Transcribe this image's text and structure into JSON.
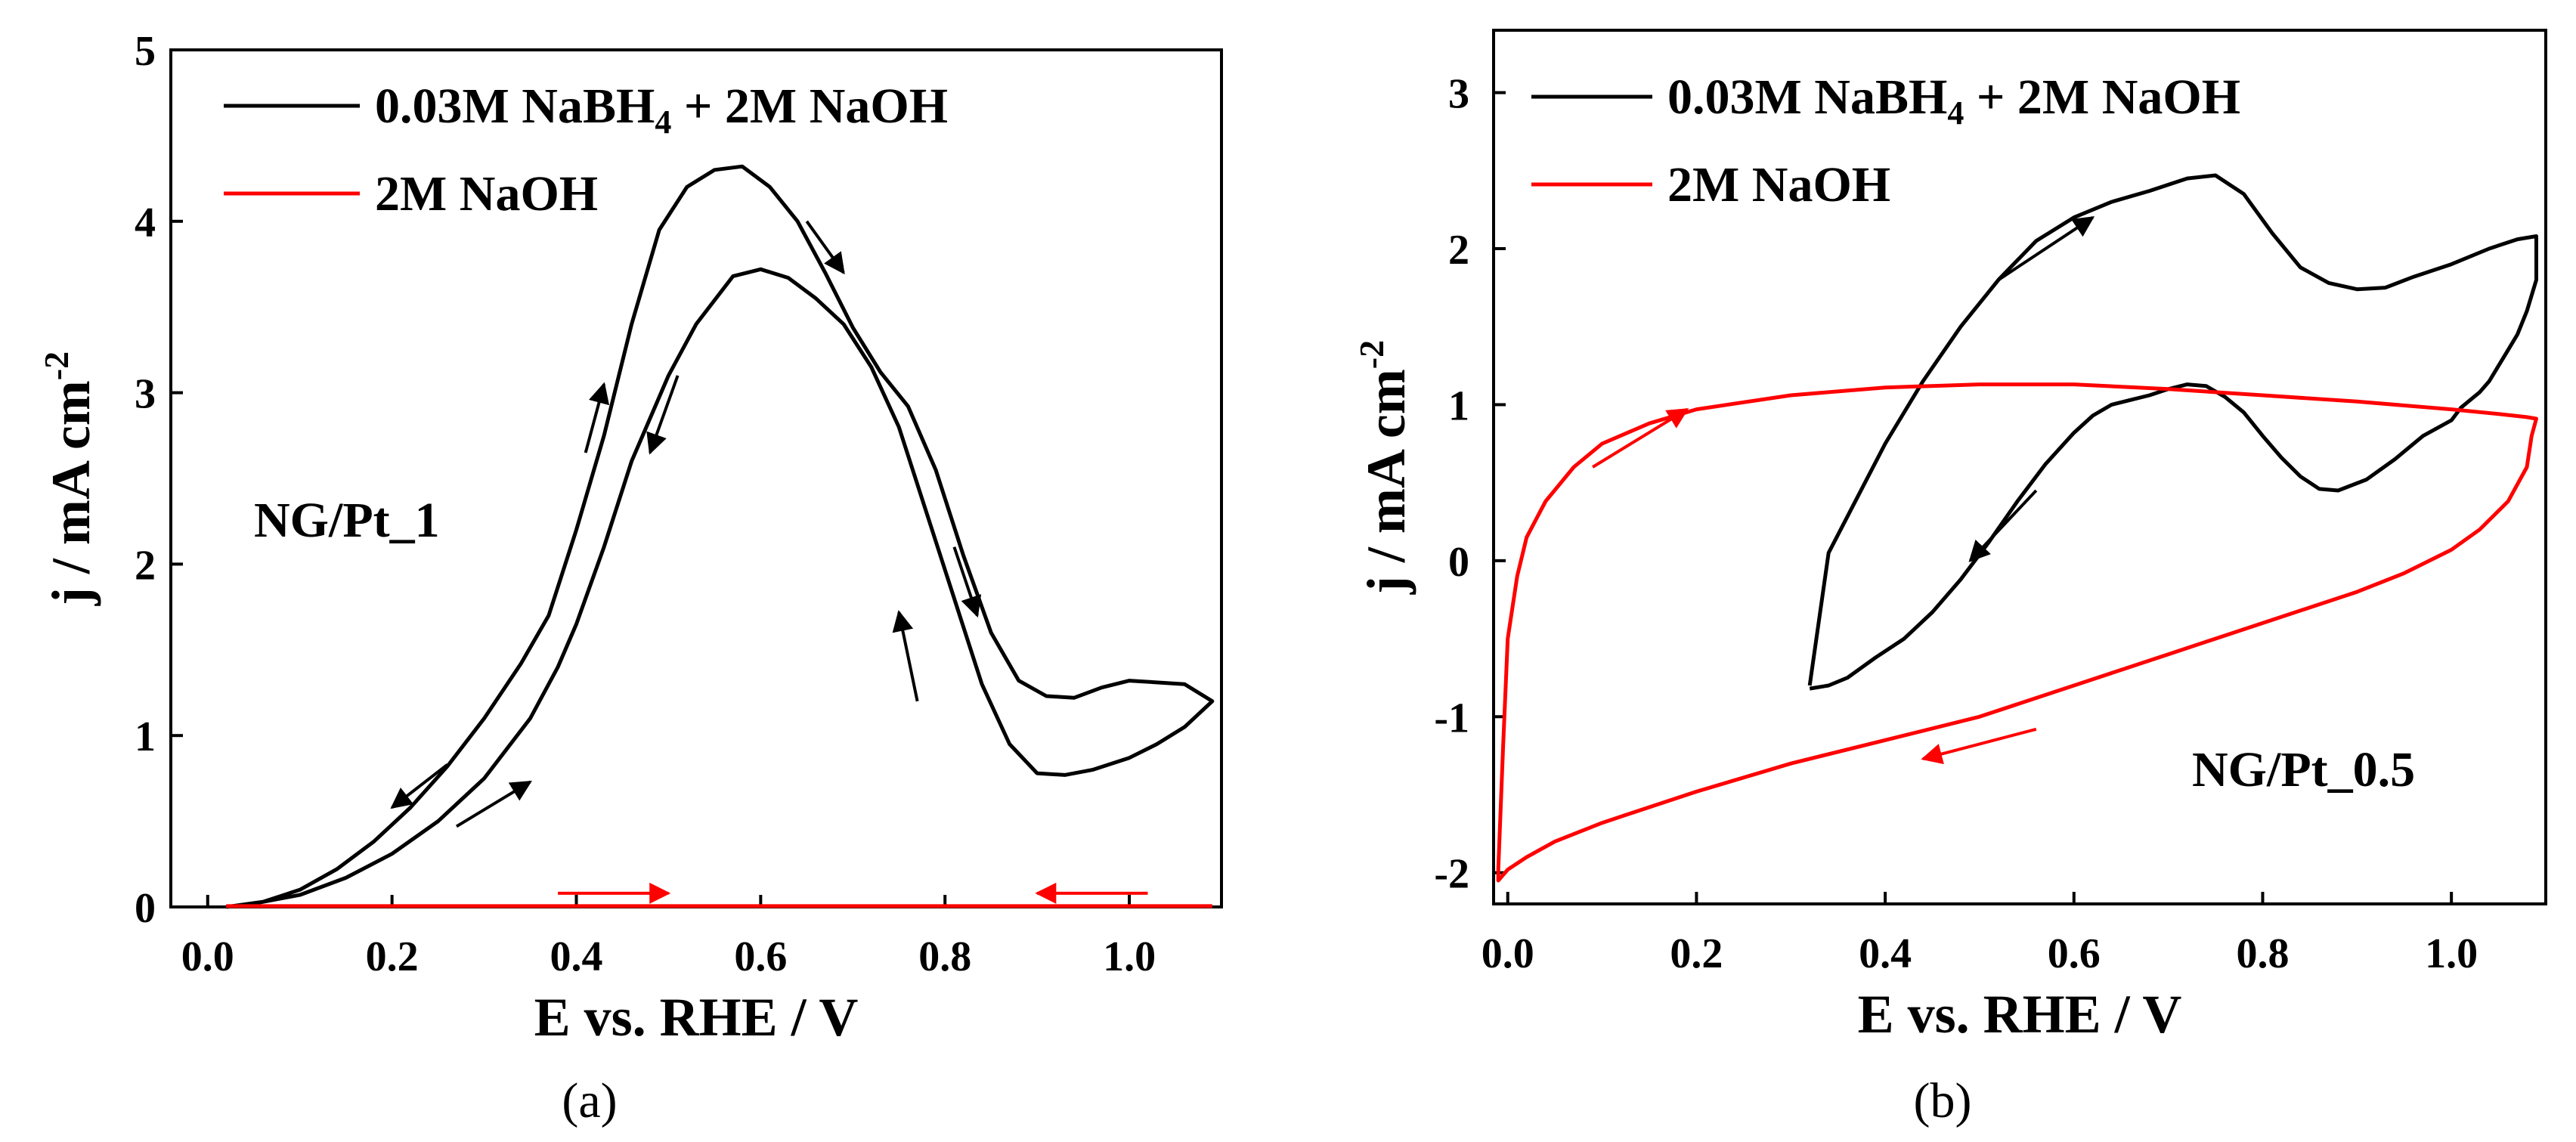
{
  "colors": {
    "black": "#000000",
    "red": "#ff0000"
  },
  "chart_data": [
    {
      "type": "line",
      "caption": "(a)",
      "annotation": "NG/Pt_1",
      "xlabel": "E vs. RHE / V",
      "ylabel": "j / mA cm",
      "ylabel_sup": "-2",
      "xlim": [
        -0.04,
        1.1
      ],
      "ylim": [
        0,
        5
      ],
      "xticks": [
        "0.0",
        "0.2",
        "0.4",
        "0.6",
        "0.8",
        "1.0"
      ],
      "yticks": [
        "0",
        "1",
        "2",
        "3",
        "4",
        "5"
      ],
      "xtick_values": [
        0,
        0.2,
        0.4,
        0.6,
        0.8,
        1.0
      ],
      "ytick_values": [
        0,
        1,
        2,
        3,
        4,
        5
      ],
      "legend": {
        "position": "top-left",
        "entries": [
          {
            "label_main": "0.03M NaBH",
            "label_sub": "4",
            "label_tail": " + 2M NaOH",
            "color": "#000000"
          },
          {
            "label": "2M NaOH",
            "color": "#ff0000"
          }
        ]
      },
      "series": [
        {
          "name": "0.03M NaBH4 + 2M NaOH",
          "color": "#000000",
          "x": [
            0.02,
            0.05,
            0.1,
            0.15,
            0.2,
            0.25,
            0.3,
            0.35,
            0.38,
            0.4,
            0.43,
            0.46,
            0.5,
            0.53,
            0.57,
            0.6,
            0.63,
            0.66,
            0.69,
            0.72,
            0.75,
            0.78,
            0.81,
            0.84,
            0.87,
            0.9,
            0.93,
            0.96,
            1.0,
            1.03,
            1.06,
            1.09,
            1.06,
            1.0,
            0.97,
            0.94,
            0.91,
            0.88,
            0.85,
            0.82,
            0.79,
            0.76,
            0.73,
            0.7,
            0.67,
            0.64,
            0.61,
            0.58,
            0.55,
            0.52,
            0.49,
            0.46,
            0.43,
            0.4,
            0.37,
            0.34,
            0.3,
            0.26,
            0.22,
            0.18,
            0.14,
            0.1,
            0.06,
            0.02
          ],
          "y": [
            0,
            0.02,
            0.07,
            0.17,
            0.31,
            0.5,
            0.75,
            1.1,
            1.4,
            1.65,
            2.1,
            2.6,
            3.1,
            3.4,
            3.68,
            3.72,
            3.67,
            3.55,
            3.4,
            3.15,
            2.8,
            2.3,
            1.8,
            1.3,
            0.95,
            0.78,
            0.77,
            0.8,
            0.87,
            0.95,
            1.05,
            1.2,
            1.3,
            1.32,
            1.28,
            1.22,
            1.23,
            1.32,
            1.6,
            2.05,
            2.55,
            2.92,
            3.12,
            3.38,
            3.7,
            4.0,
            4.2,
            4.32,
            4.3,
            4.2,
            3.95,
            3.4,
            2.75,
            2.2,
            1.7,
            1.42,
            1.1,
            0.82,
            0.58,
            0.38,
            0.22,
            0.1,
            0.03,
            0
          ]
        },
        {
          "name": "2M NaOH",
          "color": "#ff0000",
          "x": [
            0.02,
            1.09
          ],
          "y": [
            0.005,
            0.005
          ]
        }
      ],
      "arrows": [
        {
          "color": "#000000",
          "from": [
            0.27,
            0.47
          ],
          "to": [
            0.35,
            0.73
          ]
        },
        {
          "color": "#000000",
          "from": [
            0.26,
            0.83
          ],
          "to": [
            0.2,
            0.58
          ]
        },
        {
          "color": "#000000",
          "from": [
            0.41,
            2.65
          ],
          "to": [
            0.43,
            3.05
          ]
        },
        {
          "color": "#000000",
          "from": [
            0.51,
            3.1
          ],
          "to": [
            0.48,
            2.65
          ]
        },
        {
          "color": "#000000",
          "from": [
            0.65,
            4.0
          ],
          "to": [
            0.69,
            3.7
          ]
        },
        {
          "color": "#000000",
          "from": [
            0.81,
            2.1
          ],
          "to": [
            0.835,
            1.7
          ]
        },
        {
          "color": "#000000",
          "from": [
            0.77,
            1.2
          ],
          "to": [
            0.75,
            1.72
          ]
        },
        {
          "color": "#ff0000",
          "from": [
            0.38,
            0.08
          ],
          "to": [
            0.5,
            0.08
          ]
        },
        {
          "color": "#ff0000",
          "from": [
            1.02,
            0.08
          ],
          "to": [
            0.9,
            0.08
          ]
        }
      ]
    },
    {
      "type": "line",
      "caption": "(b)",
      "annotation": "NG/Pt_0.5",
      "xlabel": "E vs. RHE / V",
      "ylabel": "j / mA cm",
      "ylabel_sup": "-2",
      "xlim": [
        -0.015,
        1.1
      ],
      "ylim": [
        -2.2,
        3.4
      ],
      "xticks": [
        "0.0",
        "0.2",
        "0.4",
        "0.6",
        "0.8",
        "1.0"
      ],
      "yticks": [
        "-2",
        "-1",
        "0",
        "1",
        "2",
        "3"
      ],
      "xtick_values": [
        0,
        0.2,
        0.4,
        0.6,
        0.8,
        1.0
      ],
      "ytick_values": [
        -2,
        -1,
        0,
        1,
        2,
        3
      ],
      "legend": {
        "position": "top-left",
        "entries": [
          {
            "label_main": "0.03M NaBH",
            "label_sub": "4",
            "label_tail": " + 2M NaOH",
            "color": "#000000"
          },
          {
            "label": "2M NaOH",
            "color": "#ff0000"
          }
        ]
      },
      "series": [
        {
          "name": "0.03M NaBH4 + 2M NaOH",
          "color": "#000000",
          "x": [
            0.32,
            0.34,
            0.37,
            0.4,
            0.44,
            0.48,
            0.52,
            0.56,
            0.6,
            0.64,
            0.68,
            0.72,
            0.75,
            0.78,
            0.81,
            0.84,
            0.87,
            0.9,
            0.93,
            0.96,
            1.0,
            1.04,
            1.07,
            1.09,
            1.09,
            1.08,
            1.07,
            1.06,
            1.05,
            1.04,
            1.03,
            1.02,
            1.01,
            1.0,
            0.97,
            0.94,
            0.91,
            0.88,
            0.86,
            0.84,
            0.82,
            0.8,
            0.78,
            0.76,
            0.74,
            0.72,
            0.7,
            0.68,
            0.66,
            0.64,
            0.62,
            0.6,
            0.57,
            0.54,
            0.51,
            0.48,
            0.45,
            0.42,
            0.39,
            0.36,
            0.34,
            0.32
          ],
          "y": [
            -0.8,
            0.05,
            0.4,
            0.75,
            1.15,
            1.5,
            1.8,
            2.05,
            2.2,
            2.3,
            2.37,
            2.45,
            2.47,
            2.35,
            2.1,
            1.88,
            1.78,
            1.74,
            1.75,
            1.82,
            1.9,
            2.0,
            2.06,
            2.08,
            1.8,
            1.6,
            1.45,
            1.35,
            1.25,
            1.15,
            1.08,
            1.03,
            0.98,
            0.9,
            0.8,
            0.65,
            0.52,
            0.45,
            0.46,
            0.54,
            0.66,
            0.8,
            0.95,
            1.05,
            1.12,
            1.13,
            1.1,
            1.06,
            1.03,
            1.0,
            0.93,
            0.82,
            0.62,
            0.38,
            0.12,
            -0.12,
            -0.33,
            -0.5,
            -0.62,
            -0.75,
            -0.8,
            -0.82
          ]
        },
        {
          "name": "2M NaOH",
          "color": "#ff0000",
          "x": [
            -0.01,
            -0.005,
            0.0,
            0.01,
            0.02,
            0.04,
            0.07,
            0.1,
            0.15,
            0.2,
            0.3,
            0.4,
            0.5,
            0.6,
            0.7,
            0.8,
            0.9,
            1.0,
            1.05,
            1.08,
            1.09,
            1.085,
            1.08,
            1.06,
            1.03,
            1.0,
            0.95,
            0.9,
            0.8,
            0.7,
            0.6,
            0.5,
            0.4,
            0.3,
            0.2,
            0.15,
            0.1,
            0.05,
            0.02,
            0.0,
            -0.01,
            -0.01
          ],
          "y": [
            -1.98,
            -1.2,
            -0.5,
            -0.1,
            0.15,
            0.38,
            0.6,
            0.75,
            0.88,
            0.97,
            1.06,
            1.11,
            1.13,
            1.13,
            1.1,
            1.06,
            1.02,
            0.97,
            0.94,
            0.92,
            0.91,
            0.8,
            0.6,
            0.38,
            0.2,
            0.07,
            -0.08,
            -0.2,
            -0.4,
            -0.6,
            -0.8,
            -1.0,
            -1.15,
            -1.3,
            -1.48,
            -1.58,
            -1.68,
            -1.8,
            -1.9,
            -1.98,
            -2.05,
            -1.98
          ]
        }
      ],
      "arrows": [
        {
          "color": "#000000",
          "from": [
            0.52,
            1.8
          ],
          "to": [
            0.62,
            2.2
          ]
        },
        {
          "color": "#000000",
          "from": [
            0.56,
            0.45
          ],
          "to": [
            0.49,
            0.0
          ]
        },
        {
          "color": "#ff0000",
          "from": [
            0.09,
            0.6
          ],
          "to": [
            0.19,
            0.97
          ]
        },
        {
          "color": "#ff0000",
          "from": [
            0.56,
            -1.08
          ],
          "to": [
            0.44,
            -1.27
          ]
        }
      ]
    }
  ]
}
